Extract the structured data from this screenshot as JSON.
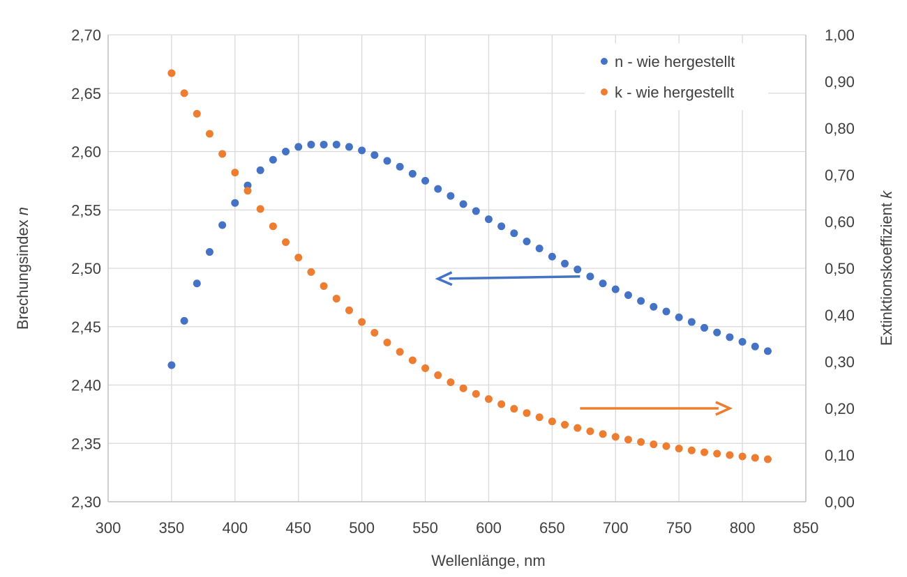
{
  "chart_data": {
    "type": "scatter",
    "xlabel": "Wellenlänge, nm",
    "ylabel_left_prefix": "Brechungsindex ",
    "ylabel_left_var": "n",
    "ylabel_right_prefix": "Extinktionskoeffizient ",
    "ylabel_right_var": "k",
    "xlim": [
      300,
      850
    ],
    "ylim_left": [
      2.3,
      2.7
    ],
    "ylim_right": [
      0.0,
      1.0
    ],
    "x_ticks": [
      300,
      350,
      400,
      450,
      500,
      550,
      600,
      650,
      700,
      750,
      800,
      850
    ],
    "x_tick_labels": [
      "300",
      "350",
      "400",
      "450",
      "500",
      "550",
      "600",
      "650",
      "700",
      "750",
      "800",
      "850"
    ],
    "y_left_ticks": [
      2.3,
      2.35,
      2.4,
      2.45,
      2.5,
      2.55,
      2.6,
      2.65,
      2.7
    ],
    "y_left_tick_labels": [
      "2,30",
      "2,35",
      "2,40",
      "2,45",
      "2,50",
      "2,55",
      "2,60",
      "2,65",
      "2,70"
    ],
    "y_right_ticks": [
      0.0,
      0.1,
      0.2,
      0.3,
      0.4,
      0.5,
      0.6,
      0.7,
      0.8,
      0.9,
      1.0
    ],
    "y_right_tick_labels": [
      "0,00",
      "0,10",
      "0,20",
      "0,30",
      "0,40",
      "0,50",
      "0,60",
      "0,70",
      "0,80",
      "0,90",
      "1,00"
    ],
    "grid": true,
    "legend_position": "top-right",
    "series": [
      {
        "name": "n - wie hergestellt",
        "axis": "left",
        "color": "#4472C4",
        "x": [
          350,
          360,
          370,
          380,
          390,
          400,
          410,
          420,
          430,
          440,
          450,
          460,
          470,
          480,
          490,
          500,
          510,
          520,
          530,
          540,
          550,
          560,
          570,
          580,
          590,
          600,
          610,
          620,
          630,
          640,
          650,
          660,
          670,
          680,
          690,
          700,
          710,
          720,
          730,
          740,
          750,
          760,
          770,
          780,
          790,
          800,
          810,
          820
        ],
        "y": [
          2.417,
          2.455,
          2.487,
          2.514,
          2.537,
          2.556,
          2.571,
          2.584,
          2.593,
          2.6,
          2.604,
          2.606,
          2.606,
          2.606,
          2.604,
          2.601,
          2.597,
          2.592,
          2.587,
          2.581,
          2.575,
          2.568,
          2.562,
          2.555,
          2.549,
          2.542,
          2.536,
          2.53,
          2.523,
          2.517,
          2.51,
          2.504,
          2.499,
          2.493,
          2.487,
          2.482,
          2.477,
          2.472,
          2.467,
          2.463,
          2.458,
          2.454,
          2.449,
          2.445,
          2.441,
          2.437,
          2.433,
          2.429
        ]
      },
      {
        "name": "k - wie hergestellt",
        "axis": "right",
        "color": "#ED7D31",
        "x": [
          350,
          360,
          370,
          380,
          390,
          400,
          410,
          420,
          430,
          440,
          450,
          460,
          470,
          480,
          490,
          500,
          510,
          520,
          530,
          540,
          550,
          560,
          570,
          580,
          590,
          600,
          610,
          620,
          630,
          640,
          650,
          660,
          670,
          680,
          690,
          700,
          710,
          720,
          730,
          740,
          750,
          760,
          770,
          780,
          790,
          800,
          810,
          820
        ],
        "y": [
          0.918,
          0.875,
          0.831,
          0.788,
          0.745,
          0.705,
          0.666,
          0.627,
          0.59,
          0.556,
          0.523,
          0.492,
          0.462,
          0.435,
          0.41,
          0.385,
          0.362,
          0.341,
          0.321,
          0.303,
          0.286,
          0.271,
          0.256,
          0.243,
          0.231,
          0.22,
          0.209,
          0.199,
          0.19,
          0.181,
          0.172,
          0.165,
          0.158,
          0.151,
          0.145,
          0.139,
          0.133,
          0.128,
          0.123,
          0.119,
          0.114,
          0.11,
          0.106,
          0.103,
          0.1,
          0.097,
          0.094,
          0.091
        ]
      }
    ],
    "annotations": [
      {
        "type": "arrow",
        "direction": "left",
        "color": "#4472C4",
        "from": {
          "x": 672,
          "y_left": 2.493
        },
        "to": {
          "x": 560,
          "y_left": 2.491
        }
      },
      {
        "type": "arrow",
        "direction": "right",
        "color": "#ED7D31",
        "from": {
          "x": 672,
          "y_right": 0.2
        },
        "to": {
          "x": 790,
          "y_right": 0.2
        }
      }
    ]
  }
}
